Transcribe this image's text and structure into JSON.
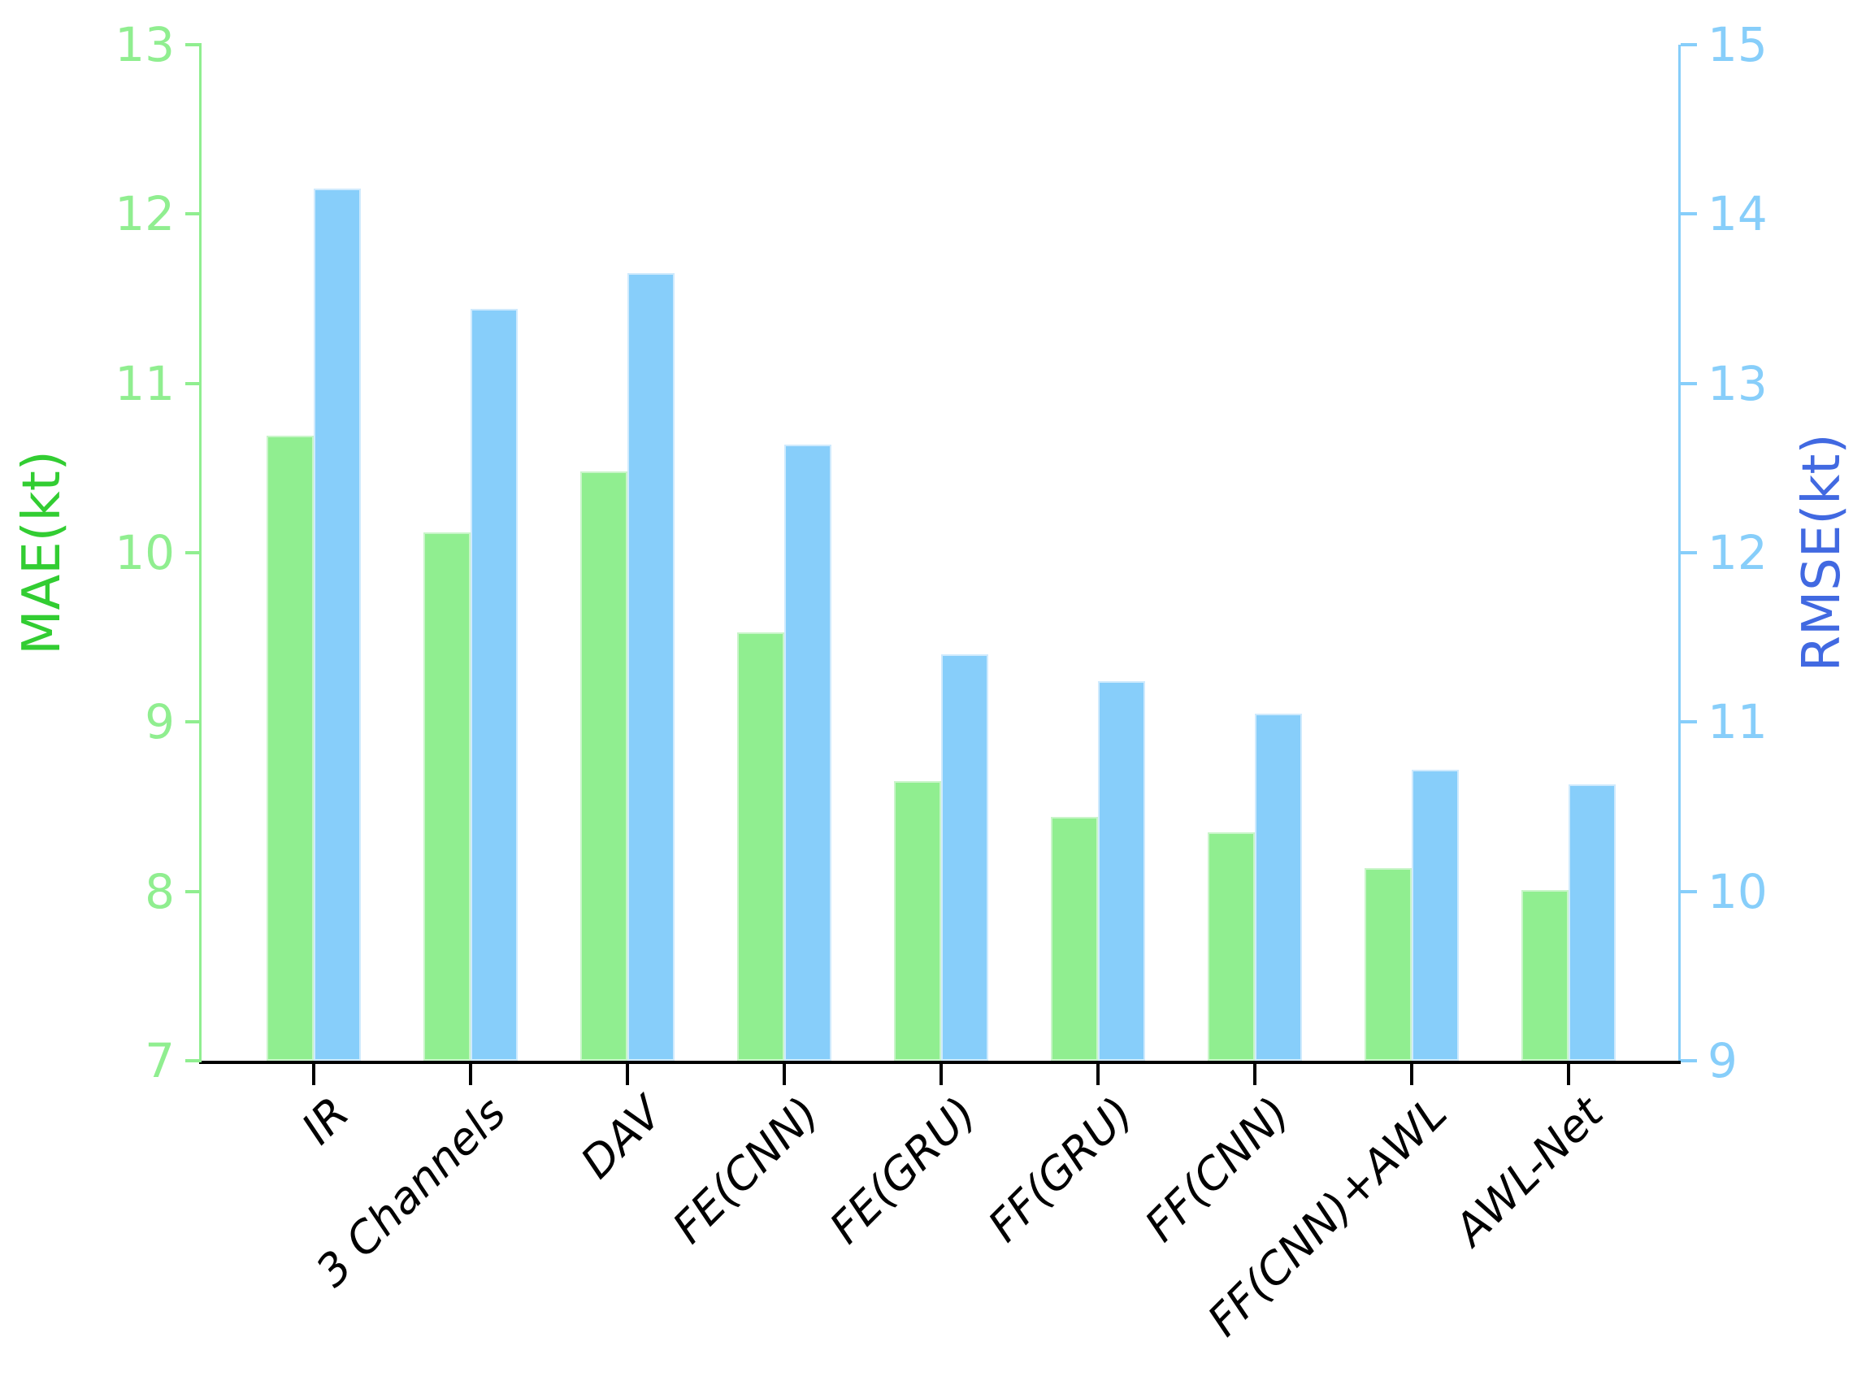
{
  "chart_data": {
    "type": "bar",
    "title": "",
    "categories": [
      "IR",
      "3 Channels",
      "DAV",
      "FE(CNN)",
      "FE(GRU)",
      "FF(GRU)",
      "FF(CNN)",
      "FF(CNN)+AWL",
      "AWL-Net"
    ],
    "series": [
      {
        "name": "MAE",
        "axis": "left",
        "color": "#90ee90",
        "edge_color": "#c9f5c9",
        "values": [
          10.69,
          10.12,
          10.48,
          9.53,
          8.65,
          8.44,
          8.35,
          8.14,
          8.01
        ]
      },
      {
        "name": "RMSE",
        "axis": "right",
        "color": "#87cefa",
        "edge_color": "#cfeafd",
        "values": [
          14.15,
          13.44,
          13.65,
          12.64,
          11.4,
          11.24,
          11.05,
          10.72,
          10.63
        ]
      }
    ],
    "left_axis": {
      "label": "MAE(kt)",
      "ticks": [
        7,
        8,
        9,
        10,
        11,
        12,
        13
      ],
      "ylim": [
        7,
        13
      ],
      "label_color": "#32cd32",
      "tick_color": "#90ee90"
    },
    "right_axis": {
      "label": "RMSE(kt)",
      "ticks": [
        9,
        10,
        11,
        12,
        13,
        14,
        15
      ],
      "ylim": [
        9,
        15
      ],
      "label_color": "#4169e1",
      "tick_color": "#87cefa"
    },
    "x_axis": {
      "tick_label_color": "#000000",
      "tick_label_style": "italic",
      "rotation_deg": 45,
      "spine_color": "#000000"
    },
    "legend": "none",
    "grid": false,
    "background": "#ffffff"
  }
}
